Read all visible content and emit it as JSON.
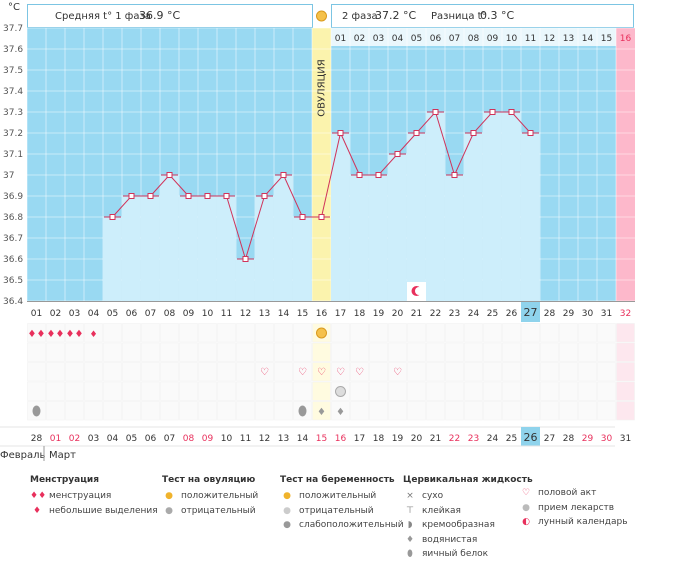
{
  "header": {
    "unit": "°C",
    "phase1_label": "Средняя t° 1 фаза",
    "phase1_value": "36.9 °C",
    "phase2_label": "2 фаза",
    "phase2_value": "37.2 °C",
    "diff_label": "Разница t°",
    "diff_value": "0.3 °C",
    "ovulation_label": "ОВУЛЯЦИЯ"
  },
  "colors": {
    "phase_bg": "#99d9f2",
    "chart_inner": "#eaf7fc",
    "bar": "#cdeefb",
    "line": "#d0335a",
    "ovulation": "#fbf3ad",
    "pink": "#fdb8cb",
    "highlight": "#8fd3ec",
    "holiday": "#e8305c"
  },
  "chart_data": {
    "type": "line",
    "title": "Базальная температура",
    "ylabel": "°C",
    "ylim": [
      36.4,
      37.7
    ],
    "y_ticks": [
      "37.7",
      "37.6",
      "37.5",
      "37.4",
      "37.3",
      "37.2",
      "37.1",
      "37",
      "36.9",
      "36.8",
      "36.7",
      "36.6",
      "36.5",
      "36.4"
    ],
    "cycle_days": [
      "01",
      "02",
      "03",
      "04",
      "05",
      "06",
      "07",
      "08",
      "09",
      "10",
      "11",
      "12",
      "13",
      "14",
      "15",
      "16",
      "17",
      "18",
      "19",
      "20",
      "21",
      "22",
      "23",
      "24",
      "25",
      "26",
      "27",
      "28",
      "29",
      "30",
      "31",
      "32"
    ],
    "phase2_days": [
      "01",
      "02",
      "03",
      "04",
      "05",
      "06",
      "07",
      "08",
      "09",
      "10",
      "11",
      "12",
      "13",
      "14",
      "15",
      "16"
    ],
    "series": [
      {
        "name": "Температура",
        "x": [
          5,
          6,
          7,
          8,
          9,
          10,
          11,
          12,
          13,
          14,
          15,
          16,
          17,
          18,
          19,
          20,
          21,
          22,
          23,
          24,
          25,
          26,
          27
        ],
        "values": [
          36.8,
          36.9,
          36.9,
          37.0,
          36.9,
          36.9,
          36.9,
          36.6,
          36.9,
          37.0,
          36.8,
          36.8,
          37.2,
          37.0,
          37.0,
          37.1,
          37.2,
          37.3,
          37.0,
          37.2,
          37.3,
          37.3,
          37.2
        ]
      }
    ],
    "ovulation_day": 16,
    "highlight_day": 27,
    "moon_day": 21,
    "dates": [
      "28",
      "01",
      "02",
      "03",
      "04",
      "05",
      "06",
      "07",
      "08",
      "09",
      "10",
      "11",
      "12",
      "13",
      "14",
      "15",
      "16",
      "17",
      "18",
      "19",
      "20",
      "21",
      "22",
      "23",
      "24",
      "25",
      "26",
      "27",
      "28",
      "29",
      "30",
      "31"
    ],
    "date_holidays": [
      1,
      2,
      8,
      9,
      15,
      16,
      22,
      23,
      29,
      30
    ],
    "month_prev": "Февраль",
    "month_next": "Март",
    "marks": {
      "menstruation_big": [
        1,
        2,
        3
      ],
      "menstruation_small": [
        4
      ],
      "ovulation_positive": [
        16
      ],
      "intercourse": [
        13,
        15,
        16,
        17,
        18,
        20
      ],
      "medication": [
        17
      ],
      "mucus_egg_white": [
        1,
        15
      ],
      "mucus_watery": [
        16,
        17
      ]
    }
  },
  "legend": {
    "menstruation": {
      "title": "Менструация",
      "items": [
        "менструация",
        "небольшие выделения"
      ]
    },
    "ovulation_test": {
      "title": "Тест на овуляцию",
      "items": [
        "положительный",
        "отрицательный"
      ]
    },
    "pregnancy_test": {
      "title": "Тест на беременность",
      "items": [
        "положительный",
        "отрицательный",
        "слабоположительный"
      ]
    },
    "cervical": {
      "title": "Цервикальная жидкость",
      "items": [
        "сухо",
        "клейкая",
        "кремообразная",
        "водянистая",
        "яичный белок"
      ]
    },
    "other": {
      "items": [
        "половой акт",
        "прием лекарств",
        "лунный календарь"
      ]
    }
  }
}
